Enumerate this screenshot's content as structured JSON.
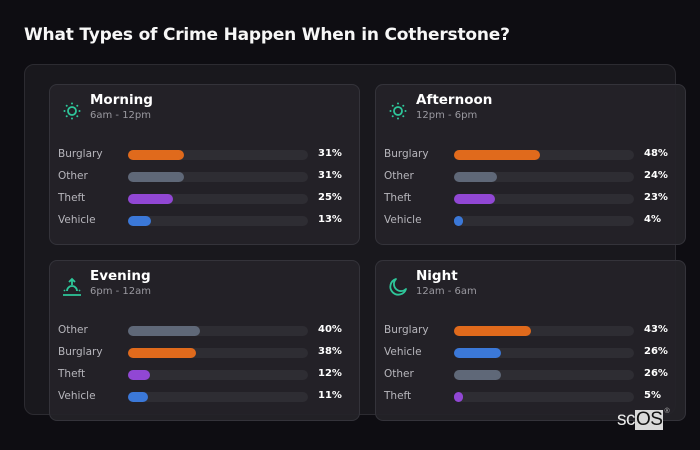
{
  "title": "What Types of Crime Happen When in Cotherstone?",
  "colors": {
    "Burglary": "#e06a1c",
    "Other": "#5f6878",
    "Theft": "#9147d4",
    "Vehicle": "#3b78d8",
    "icon": "#2ec79a"
  },
  "cards": [
    {
      "title": "Morning",
      "subtitle": "6am - 12pm",
      "icon": "sun-icon",
      "rows": [
        {
          "label": "Burglary",
          "value": 31,
          "pct": "31%"
        },
        {
          "label": "Other",
          "value": 31,
          "pct": "31%"
        },
        {
          "label": "Theft",
          "value": 25,
          "pct": "25%"
        },
        {
          "label": "Vehicle",
          "value": 13,
          "pct": "13%"
        }
      ]
    },
    {
      "title": "Afternoon",
      "subtitle": "12pm - 6pm",
      "icon": "sun-icon",
      "rows": [
        {
          "label": "Burglary",
          "value": 48,
          "pct": "48%"
        },
        {
          "label": "Other",
          "value": 24,
          "pct": "24%"
        },
        {
          "label": "Theft",
          "value": 23,
          "pct": "23%"
        },
        {
          "label": "Vehicle",
          "value": 4,
          "pct": "4%"
        }
      ]
    },
    {
      "title": "Evening",
      "subtitle": "6pm - 12am",
      "icon": "sunset-icon",
      "rows": [
        {
          "label": "Other",
          "value": 40,
          "pct": "40%"
        },
        {
          "label": "Burglary",
          "value": 38,
          "pct": "38%"
        },
        {
          "label": "Theft",
          "value": 12,
          "pct": "12%"
        },
        {
          "label": "Vehicle",
          "value": 11,
          "pct": "11%"
        }
      ]
    },
    {
      "title": "Night",
      "subtitle": "12am - 6am",
      "icon": "moon-icon",
      "rows": [
        {
          "label": "Burglary",
          "value": 43,
          "pct": "43%"
        },
        {
          "label": "Vehicle",
          "value": 26,
          "pct": "26%"
        },
        {
          "label": "Other",
          "value": 26,
          "pct": "26%"
        },
        {
          "label": "Theft",
          "value": 5,
          "pct": "5%"
        }
      ]
    }
  ],
  "logo": {
    "text_sc": "sc",
    "text_os": "OS",
    "reg": "®"
  },
  "chart_data": [
    {
      "type": "bar",
      "title": "Morning",
      "subtitle": "6am - 12pm",
      "categories": [
        "Burglary",
        "Other",
        "Theft",
        "Vehicle"
      ],
      "values": [
        31,
        31,
        25,
        13
      ],
      "unit": "%",
      "xlim": [
        0,
        100
      ],
      "orientation": "horizontal"
    },
    {
      "type": "bar",
      "title": "Afternoon",
      "subtitle": "12pm - 6pm",
      "categories": [
        "Burglary",
        "Other",
        "Theft",
        "Vehicle"
      ],
      "values": [
        48,
        24,
        23,
        4
      ],
      "unit": "%",
      "xlim": [
        0,
        100
      ],
      "orientation": "horizontal"
    },
    {
      "type": "bar",
      "title": "Evening",
      "subtitle": "6pm - 12am",
      "categories": [
        "Other",
        "Burglary",
        "Theft",
        "Vehicle"
      ],
      "values": [
        40,
        38,
        12,
        11
      ],
      "unit": "%",
      "xlim": [
        0,
        100
      ],
      "orientation": "horizontal"
    },
    {
      "type": "bar",
      "title": "Night",
      "subtitle": "12am - 6am",
      "categories": [
        "Burglary",
        "Vehicle",
        "Other",
        "Theft"
      ],
      "values": [
        43,
        26,
        26,
        5
      ],
      "unit": "%",
      "xlim": [
        0,
        100
      ],
      "orientation": "horizontal"
    }
  ]
}
